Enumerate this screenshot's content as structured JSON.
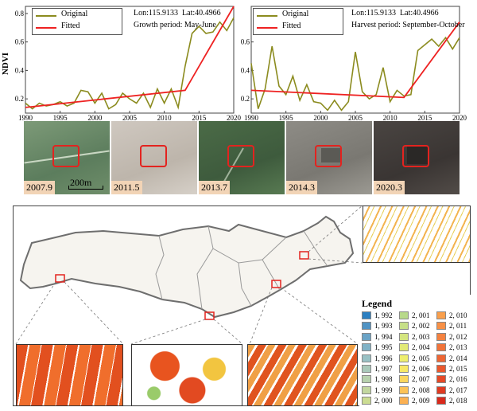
{
  "charts": [
    {
      "legend_original": "Original",
      "legend_fitted": "Fitted",
      "lon": "Lon:115.9133",
      "lat": "Lat:40.4966",
      "period": "Growth period: May-June"
    },
    {
      "legend_original": "Original",
      "legend_fitted": "Fitted",
      "lon": "Lon:115.9133",
      "lat": "Lat:40.4966",
      "period": "Harvest period: September-October"
    }
  ],
  "ylabel": "NDVI",
  "colors": {
    "original": "#8b8b1e",
    "fitted": "#ee2222"
  },
  "chart_data": [
    {
      "type": "line",
      "ylabel": "NDVI",
      "ylim": [
        0.1,
        0.85
      ],
      "xlim": [
        1990,
        2020
      ],
      "x_ticks": [
        1990,
        1995,
        2000,
        2005,
        2010,
        2015,
        2020
      ],
      "y_ticks": [
        0.2,
        0.4,
        0.6,
        0.8
      ],
      "series": [
        {
          "name": "Original",
          "x": [
            1990,
            1991,
            1992,
            1993,
            1994,
            1995,
            1996,
            1997,
            1998,
            1999,
            2000,
            2001,
            2002,
            2003,
            2004,
            2005,
            2006,
            2007,
            2008,
            2009,
            2010,
            2011,
            2012,
            2013,
            2014,
            2015,
            2016,
            2017,
            2018,
            2019,
            2020
          ],
          "y": [
            0.17,
            0.13,
            0.17,
            0.15,
            0.16,
            0.18,
            0.15,
            0.17,
            0.26,
            0.25,
            0.17,
            0.24,
            0.13,
            0.16,
            0.24,
            0.2,
            0.17,
            0.24,
            0.14,
            0.27,
            0.17,
            0.27,
            0.14,
            0.43,
            0.66,
            0.71,
            0.66,
            0.67,
            0.74,
            0.68,
            0.77
          ]
        },
        {
          "name": "Fitted",
          "x": [
            1990,
            2013,
            2020
          ],
          "y": [
            0.14,
            0.26,
            0.85
          ]
        }
      ]
    },
    {
      "type": "line",
      "xlim": [
        1990,
        2020
      ],
      "ylim": [
        0.1,
        0.85
      ],
      "x_ticks": [
        1990,
        1995,
        2000,
        2005,
        2010,
        2015,
        2020
      ],
      "y_ticks": [
        0.2,
        0.4,
        0.6
      ],
      "series": [
        {
          "name": "Original",
          "x": [
            1990,
            1991,
            1992,
            1993,
            1994,
            1995,
            1996,
            1997,
            1998,
            1999,
            2000,
            2001,
            2002,
            2003,
            2004,
            2005,
            2006,
            2007,
            2008,
            2009,
            2010,
            2011,
            2012,
            2013,
            2014,
            2015,
            2016,
            2017,
            2018,
            2019,
            2020
          ],
          "y": [
            0.45,
            0.13,
            0.27,
            0.57,
            0.29,
            0.23,
            0.36,
            0.19,
            0.3,
            0.18,
            0.17,
            0.12,
            0.19,
            0.12,
            0.18,
            0.53,
            0.25,
            0.2,
            0.23,
            0.42,
            0.18,
            0.26,
            0.22,
            0.23,
            0.54,
            0.58,
            0.62,
            0.57,
            0.63,
            0.55,
            0.63
          ]
        },
        {
          "name": "Fitted",
          "x": [
            1990,
            2012,
            2020
          ],
          "y": [
            0.26,
            0.21,
            0.74
          ]
        }
      ]
    }
  ],
  "scale_bar": "200m",
  "sat_labels": [
    "2007.9",
    "2011.5",
    "2013.7",
    "2014.3",
    "2020.3"
  ],
  "legend": {
    "title": "Legend",
    "items": [
      {
        "label": "1, 992",
        "color": "#2b7fc1"
      },
      {
        "label": "1, 993",
        "color": "#4f93c4"
      },
      {
        "label": "1, 994",
        "color": "#6aa3c6"
      },
      {
        "label": "1, 995",
        "color": "#80b2c6"
      },
      {
        "label": "1, 996",
        "color": "#98c1c4"
      },
      {
        "label": "1, 997",
        "color": "#a9c9ba"
      },
      {
        "label": "1, 998",
        "color": "#b7d1ad"
      },
      {
        "label": "1, 999",
        "color": "#c2d79f"
      },
      {
        "label": "2, 000",
        "color": "#cbdc92"
      },
      {
        "label": "2, 001",
        "color": "#b8d98a"
      },
      {
        "label": "2, 002",
        "color": "#c6df87"
      },
      {
        "label": "2, 003",
        "color": "#d4e57f"
      },
      {
        "label": "2, 004",
        "color": "#e2ea77"
      },
      {
        "label": "2, 005",
        "color": "#eeee6e"
      },
      {
        "label": "2, 006",
        "color": "#f7e866"
      },
      {
        "label": "2, 007",
        "color": "#fbd65e"
      },
      {
        "label": "2, 008",
        "color": "#fcc257"
      },
      {
        "label": "2, 009",
        "color": "#fbb052"
      },
      {
        "label": "2, 010",
        "color": "#f99f4c"
      },
      {
        "label": "2, 011",
        "color": "#f79046"
      },
      {
        "label": "2, 012",
        "color": "#f48240"
      },
      {
        "label": "2, 013",
        "color": "#f1743a"
      },
      {
        "label": "2, 014",
        "color": "#ee6634"
      },
      {
        "label": "2, 015",
        "color": "#ea582e"
      },
      {
        "label": "2, 016",
        "color": "#e54a28"
      },
      {
        "label": "2, 017",
        "color": "#e03b22"
      },
      {
        "label": "2, 018",
        "color": "#d92a1c"
      }
    ]
  }
}
